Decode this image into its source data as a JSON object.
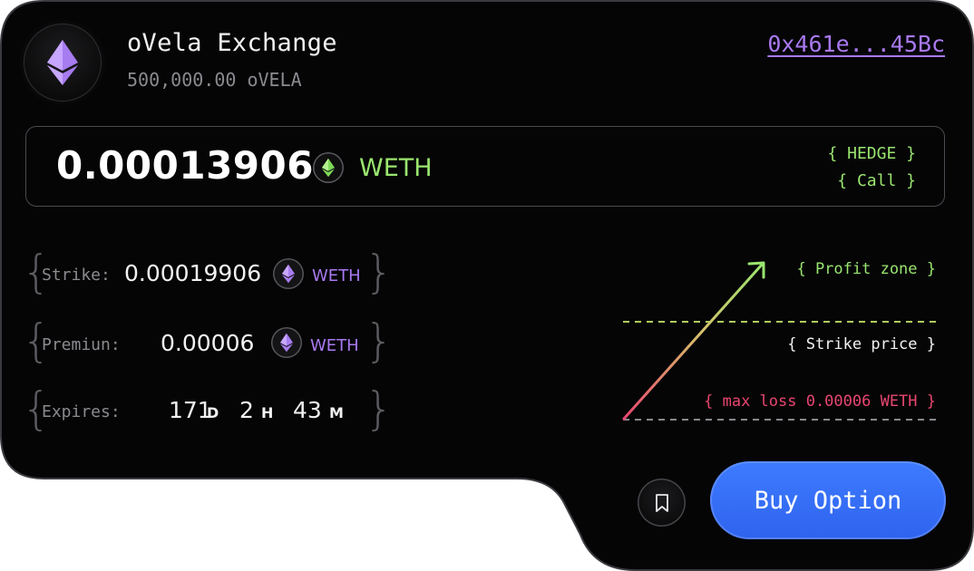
{
  "header": {
    "title": "oVela Exchange",
    "balance": "500,000.00 oVELA",
    "address": "0x461e...45Bc"
  },
  "amount": {
    "value": "0.00013906",
    "unit": "WETH",
    "tag_type": "{ HEDGE }",
    "tag_kind": "{ Call }"
  },
  "details": {
    "strike": {
      "label": "Strike:",
      "value": "0.00019906",
      "unit": "WETH"
    },
    "premium": {
      "label": "Premiun:",
      "value": "0.00006",
      "unit": "WETH"
    },
    "expires": {
      "label": "Expires:",
      "days": "171",
      "days_unit": "D",
      "hours": "2",
      "hours_unit": "H",
      "minutes": "43",
      "minutes_unit": "M"
    }
  },
  "chart": {
    "profit_zone": "{ Profit zone }",
    "strike_price": "{ Strike price }",
    "max_loss": "{ max loss 0.00006 WETH }"
  },
  "actions": {
    "buy_label": "Buy Option"
  },
  "colors": {
    "accent_green": "#9ae56f",
    "accent_purple": "#a979f0",
    "accent_red": "#e8466f",
    "button_blue": "#3d7bff"
  },
  "icons": {
    "token": "ethereum-icon",
    "bookmark": "bookmark-icon"
  }
}
